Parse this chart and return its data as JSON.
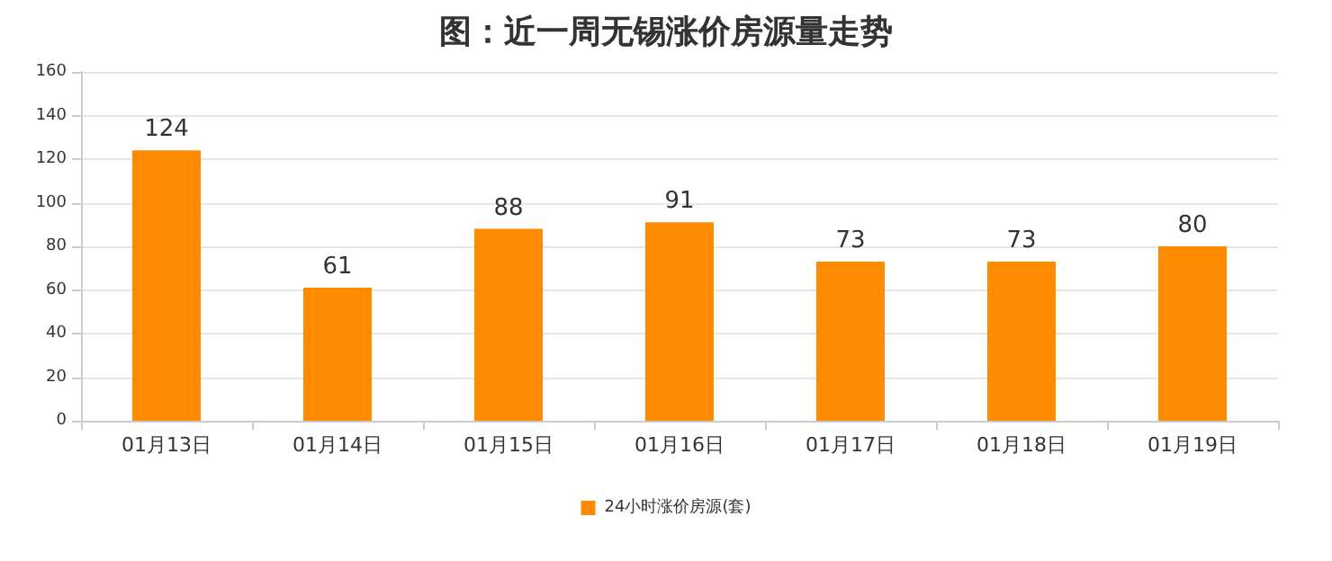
{
  "chart_data": {
    "type": "bar",
    "title": "图：近一周无锡涨价房源量走势",
    "categories": [
      "01月13日",
      "01月14日",
      "01月15日",
      "01月16日",
      "01月17日",
      "01月18日",
      "01月19日"
    ],
    "series": [
      {
        "name": "24小时涨价房源(套)",
        "color": "#ff8a00",
        "values": [
          124,
          61,
          88,
          91,
          73,
          73,
          80
        ]
      }
    ],
    "ylim": [
      0,
      160
    ],
    "yticks": [
      0,
      20,
      40,
      60,
      80,
      100,
      120,
      140,
      160
    ],
    "grid": "y",
    "legend": "bottom",
    "data_labels": true
  }
}
